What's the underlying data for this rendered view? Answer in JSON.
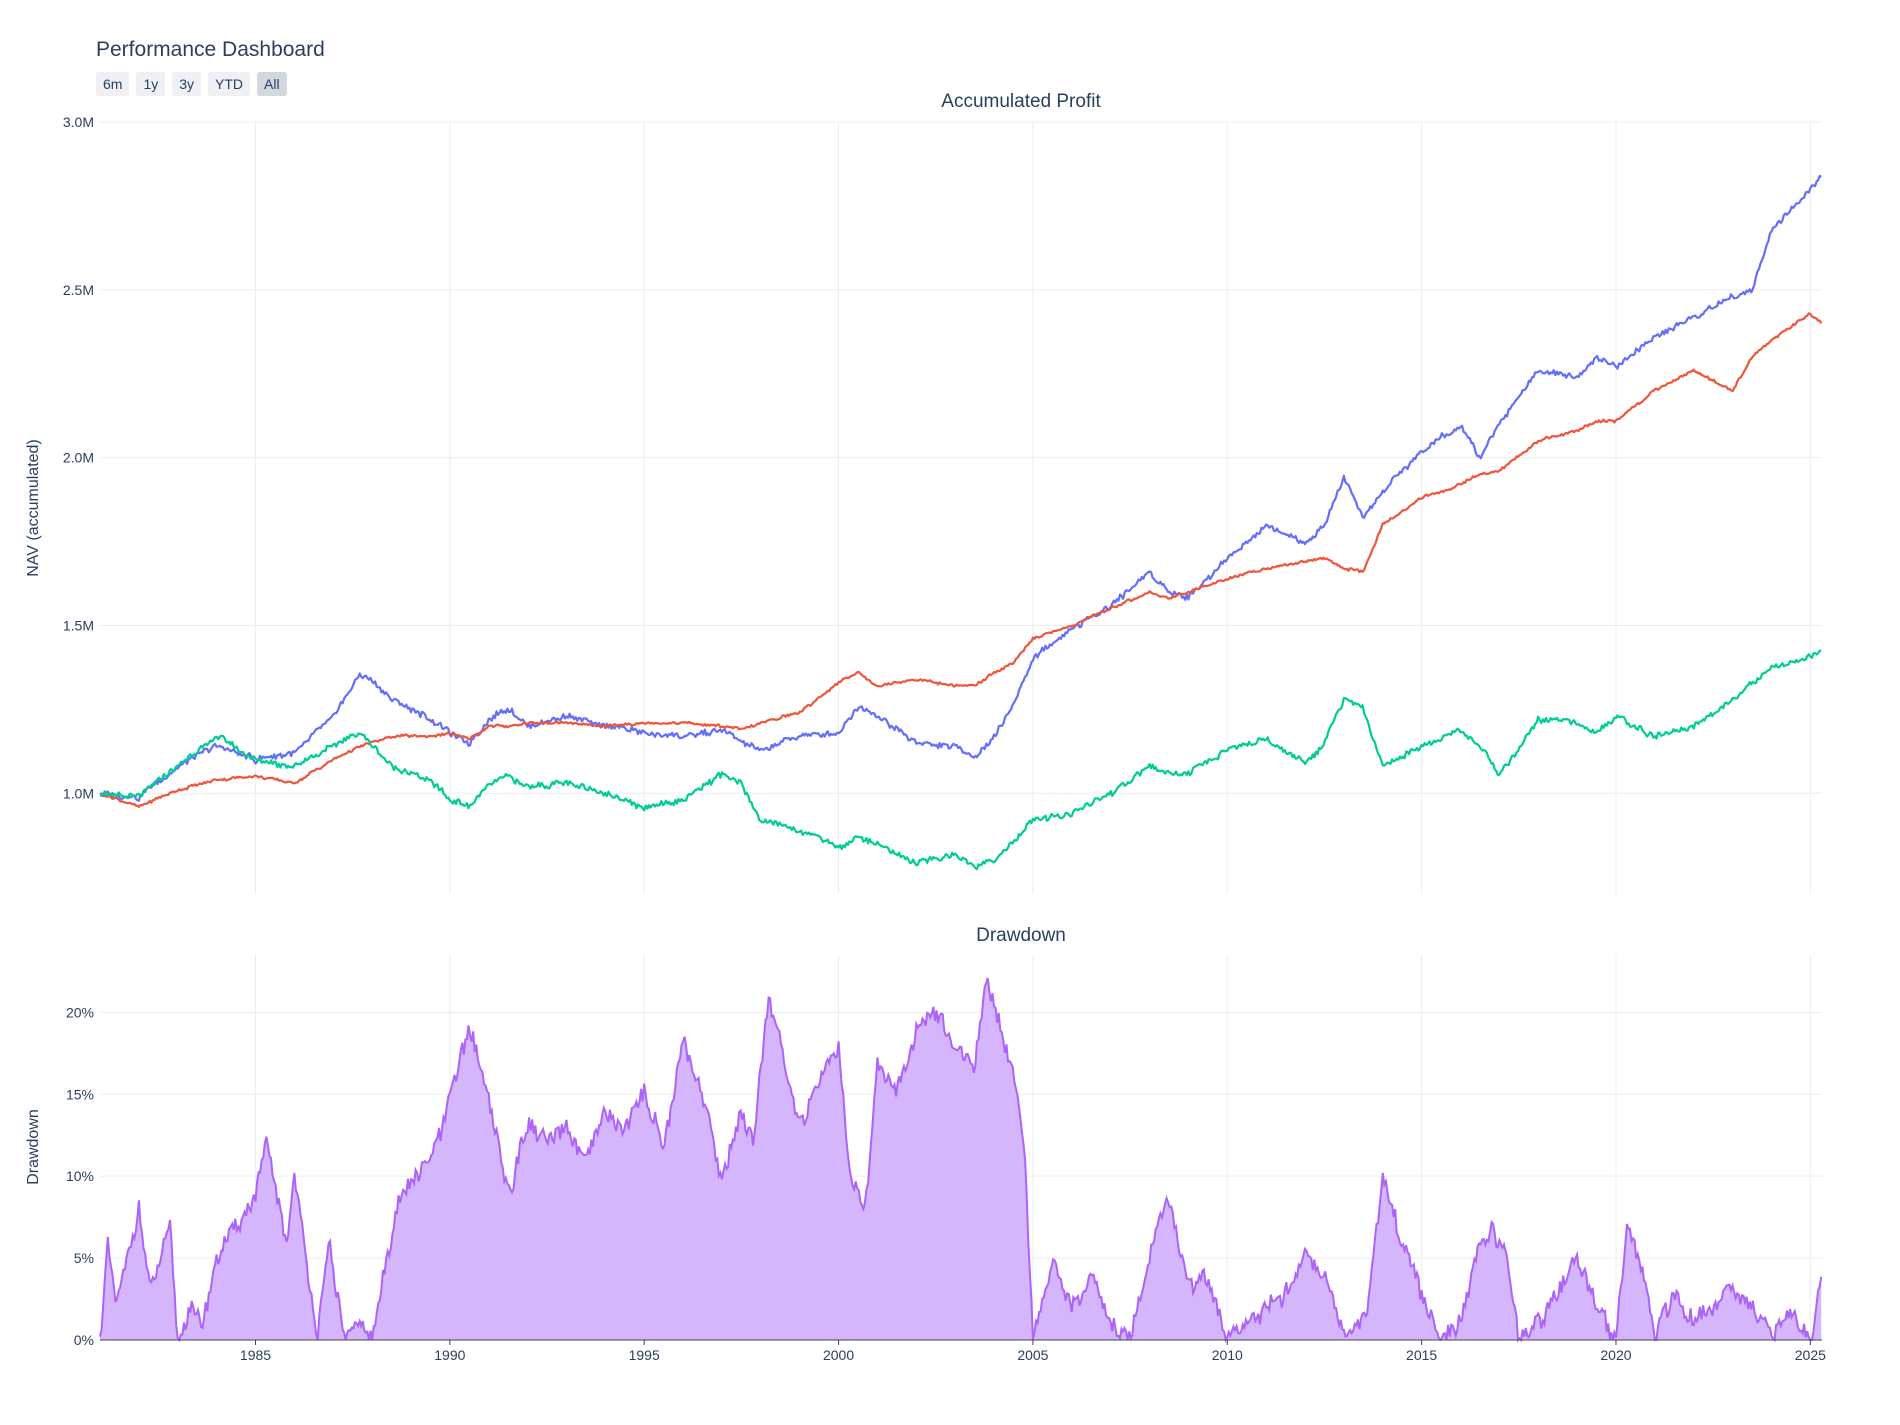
{
  "dashboard": {
    "title": "Performance Dashboard",
    "range_buttons": [
      "6m",
      "1y",
      "3y",
      "YTD",
      "All"
    ],
    "active_button": "All"
  },
  "chart_data": [
    {
      "type": "line",
      "title": "Accumulated Profit",
      "ylabel": "NAV (accumulated)",
      "xlabel": "",
      "xlim": [
        1981.0,
        2025.3
      ],
      "ylim": [
        700000,
        3000000
      ],
      "x_ticks": [
        "1985",
        "1990",
        "1995",
        "2000",
        "2005",
        "2010",
        "2015",
        "2020",
        "2025"
      ],
      "y_ticks": [
        "1.0M",
        "1.5M",
        "2.0M",
        "2.5M",
        "3.0M"
      ],
      "grid": true,
      "legend": "none",
      "x": [
        1981.0,
        1982.0,
        1983.0,
        1984.0,
        1985.0,
        1986.0,
        1987.0,
        1987.7,
        1988.5,
        1989.5,
        1990.0,
        1990.5,
        1991.0,
        1991.5,
        1992.0,
        1993.0,
        1994.0,
        1995.0,
        1996.0,
        1997.0,
        1997.5,
        1998.0,
        1999.0,
        2000.0,
        2000.5,
        2001.0,
        2002.0,
        2003.0,
        2003.5,
        2004.0,
        2004.5,
        2005.0,
        2006.0,
        2007.0,
        2008.0,
        2008.5,
        2009.0,
        2010.0,
        2011.0,
        2012.0,
        2012.5,
        2013.0,
        2013.5,
        2014.0,
        2015.0,
        2016.0,
        2016.5,
        2017.0,
        2018.0,
        2019.0,
        2019.5,
        2020.0,
        2021.0,
        2022.0,
        2023.0,
        2023.5,
        2024.0,
        2025.0,
        2025.3
      ],
      "series": [
        {
          "color": "#636efa",
          "values": [
            1000000,
            990000,
            1080000,
            1140000,
            1100000,
            1120000,
            1230000,
            1360000,
            1280000,
            1220000,
            1180000,
            1150000,
            1220000,
            1250000,
            1200000,
            1230000,
            1200000,
            1180000,
            1170000,
            1190000,
            1150000,
            1130000,
            1170000,
            1180000,
            1260000,
            1230000,
            1150000,
            1140000,
            1110000,
            1170000,
            1260000,
            1400000,
            1490000,
            1560000,
            1660000,
            1600000,
            1580000,
            1700000,
            1800000,
            1740000,
            1800000,
            1940000,
            1820000,
            1900000,
            2020000,
            2100000,
            2000000,
            2100000,
            2260000,
            2240000,
            2300000,
            2270000,
            2360000,
            2420000,
            2480000,
            2500000,
            2680000,
            2800000,
            2840000
          ]
        },
        {
          "color": "#ef553b",
          "values": [
            1000000,
            960000,
            1010000,
            1040000,
            1050000,
            1030000,
            1100000,
            1140000,
            1170000,
            1170000,
            1180000,
            1160000,
            1200000,
            1200000,
            1210000,
            1210000,
            1200000,
            1210000,
            1210000,
            1200000,
            1190000,
            1210000,
            1240000,
            1330000,
            1360000,
            1320000,
            1340000,
            1320000,
            1320000,
            1360000,
            1390000,
            1460000,
            1500000,
            1550000,
            1600000,
            1580000,
            1600000,
            1640000,
            1670000,
            1690000,
            1700000,
            1670000,
            1660000,
            1800000,
            1880000,
            1920000,
            1950000,
            1960000,
            2050000,
            2080000,
            2110000,
            2110000,
            2200000,
            2260000,
            2200000,
            2300000,
            2350000,
            2430000,
            2400000
          ]
        },
        {
          "color": "#00cc96",
          "values": [
            1000000,
            990000,
            1080000,
            1170000,
            1100000,
            1080000,
            1140000,
            1180000,
            1080000,
            1040000,
            980000,
            960000,
            1030000,
            1050000,
            1020000,
            1030000,
            1000000,
            960000,
            980000,
            1060000,
            1030000,
            920000,
            890000,
            840000,
            870000,
            850000,
            790000,
            820000,
            780000,
            800000,
            860000,
            920000,
            940000,
            1000000,
            1080000,
            1060000,
            1060000,
            1130000,
            1160000,
            1090000,
            1150000,
            1280000,
            1250000,
            1080000,
            1140000,
            1190000,
            1140000,
            1050000,
            1220000,
            1210000,
            1180000,
            1230000,
            1170000,
            1200000,
            1280000,
            1330000,
            1370000,
            1410000,
            1420000
          ]
        }
      ]
    },
    {
      "type": "area",
      "title": "Drawdown",
      "ylabel": "Drawdown",
      "xlabel": "",
      "xlim": [
        1981.0,
        2025.3
      ],
      "ylim": [
        0,
        0.235
      ],
      "x_ticks": [
        "1985",
        "1990",
        "1995",
        "2000",
        "2005",
        "2010",
        "2015",
        "2020",
        "2025"
      ],
      "y_ticks": [
        "0%",
        "5%",
        "10%",
        "15%",
        "20%"
      ],
      "grid": true,
      "legend": "none",
      "series": [
        {
          "color": "#ab63fa",
          "fill": "#d5b6fc",
          "x": [
            1981.0,
            1981.2,
            1981.4,
            1981.6,
            1982.0,
            1982.3,
            1982.8,
            1983.0,
            1983.3,
            1983.6,
            1984.0,
            1984.5,
            1985.0,
            1985.3,
            1985.8,
            1986.0,
            1986.3,
            1986.6,
            1986.9,
            1987.3,
            1987.7,
            1988.0,
            1988.6,
            1989.2,
            1989.7,
            1990.0,
            1990.5,
            1991.0,
            1991.5,
            1992.0,
            1992.5,
            1993.0,
            1993.5,
            1994.0,
            1994.5,
            1995.0,
            1995.5,
            1996.0,
            1996.5,
            1997.0,
            1997.5,
            1997.8,
            1998.2,
            1998.6,
            1999.0,
            1999.5,
            2000.0,
            2000.3,
            2000.7,
            2001.0,
            2001.5,
            2002.0,
            2002.5,
            2003.0,
            2003.5,
            2003.8,
            2004.2,
            2004.5,
            2004.8,
            2005.0,
            2005.5,
            2006.0,
            2006.5,
            2007.0,
            2007.5,
            2008.0,
            2008.5,
            2009.0,
            2009.5,
            2010.0,
            2010.5,
            2011.0,
            2011.5,
            2012.0,
            2012.5,
            2013.0,
            2013.6,
            2014.0,
            2014.5,
            2015.0,
            2015.5,
            2016.0,
            2016.5,
            2016.8,
            2017.2,
            2017.5,
            2018.0,
            2018.5,
            2019.0,
            2019.5,
            2020.0,
            2020.3,
            2020.8,
            2021.0,
            2021.5,
            2022.0,
            2022.5,
            2023.0,
            2023.5,
            2024.0,
            2024.5,
            2025.0,
            2025.3
          ],
          "values": [
            0.0,
            0.06,
            0.02,
            0.04,
            0.08,
            0.03,
            0.07,
            0.0,
            0.02,
            0.01,
            0.05,
            0.07,
            0.09,
            0.12,
            0.06,
            0.1,
            0.05,
            0.0,
            0.06,
            0.0,
            0.01,
            0.0,
            0.08,
            0.1,
            0.12,
            0.15,
            0.19,
            0.15,
            0.09,
            0.13,
            0.12,
            0.13,
            0.11,
            0.14,
            0.13,
            0.15,
            0.12,
            0.18,
            0.15,
            0.1,
            0.14,
            0.12,
            0.21,
            0.17,
            0.13,
            0.16,
            0.18,
            0.1,
            0.08,
            0.17,
            0.15,
            0.19,
            0.2,
            0.18,
            0.17,
            0.22,
            0.19,
            0.16,
            0.11,
            0.0,
            0.05,
            0.02,
            0.04,
            0.01,
            0.0,
            0.05,
            0.09,
            0.03,
            0.04,
            0.0,
            0.01,
            0.02,
            0.03,
            0.05,
            0.04,
            0.0,
            0.02,
            0.1,
            0.06,
            0.03,
            0.0,
            0.01,
            0.06,
            0.07,
            0.05,
            0.0,
            0.01,
            0.03,
            0.05,
            0.02,
            0.0,
            0.07,
            0.03,
            0.0,
            0.03,
            0.01,
            0.02,
            0.03,
            0.02,
            0.0,
            0.02,
            0.0,
            0.04
          ]
        }
      ]
    }
  ]
}
